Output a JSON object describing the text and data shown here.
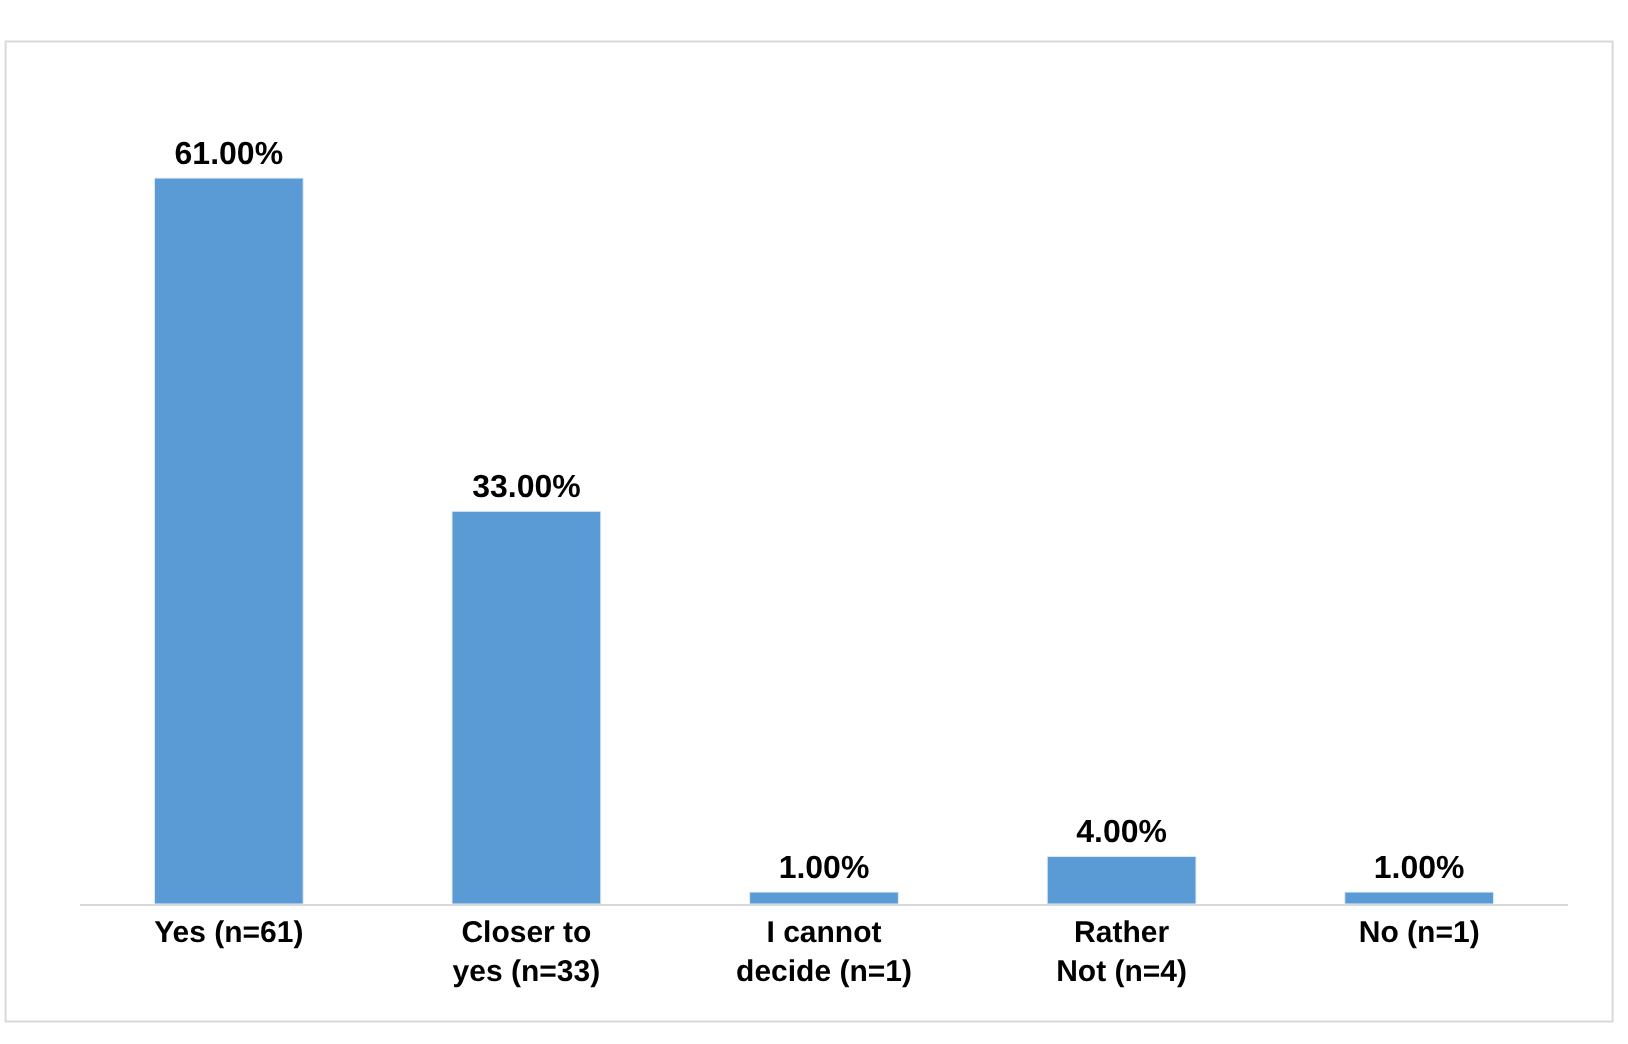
{
  "chart_data": {
    "type": "bar",
    "categories": [
      "Yes (n=61)",
      "Closer to yes (n=33)",
      "I cannot decide (n=1)",
      "Rather Not (n=4)",
      "No (n=1)"
    ],
    "values": [
      61,
      33,
      1,
      4,
      1
    ],
    "value_labels": [
      "61.00%",
      "33.00%",
      "1.00%",
      "4.00%",
      "1.00%"
    ],
    "color": "#5b9bd5"
  }
}
